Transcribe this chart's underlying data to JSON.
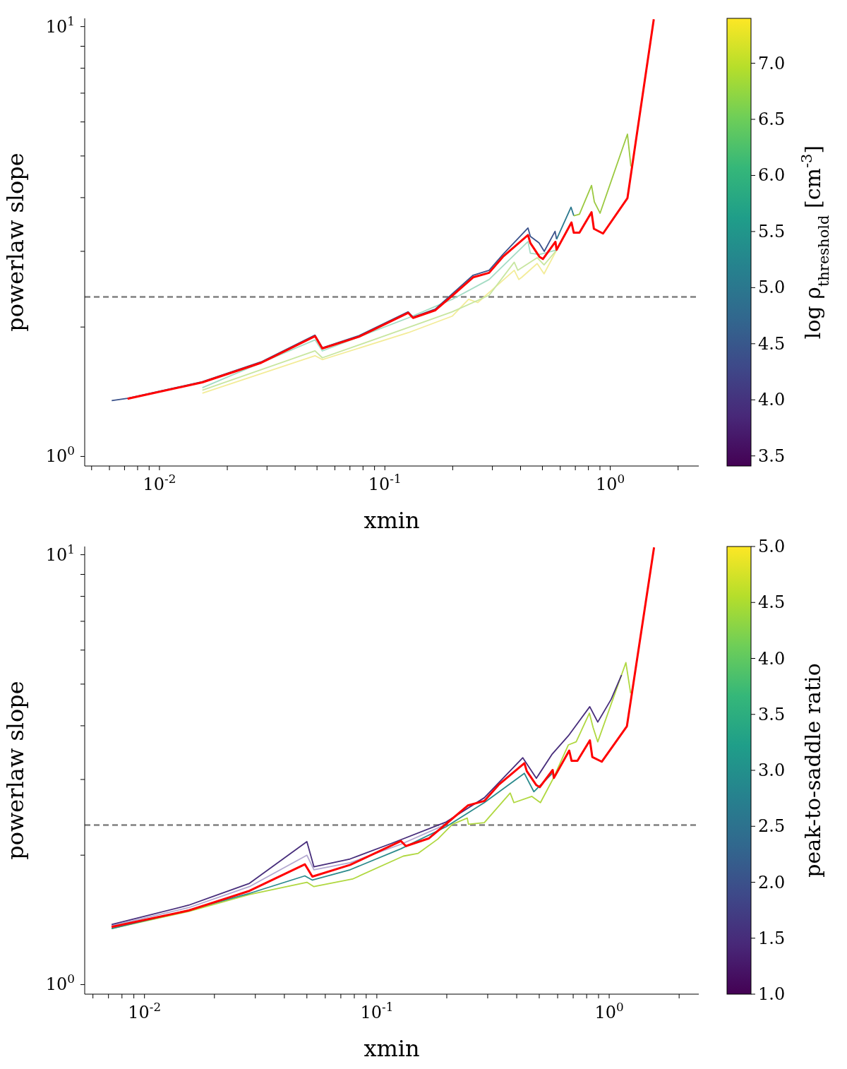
{
  "chart_data": [
    {
      "type": "line",
      "xlabel": "xmin",
      "ylabel": "powerlaw slope",
      "clabel": "log ρ$_{threshold}$ [cm$^{-3}$]",
      "log": "xy",
      "grid": false,
      "marker": "none",
      "xlim": [
        0.00466,
        2.47
      ],
      "ylim": [
        0.95,
        10.45
      ],
      "xticks": [
        {
          "value": 0.005,
          "label": null
        },
        {
          "value": 0.006,
          "label": null
        },
        {
          "value": 0.007,
          "label": null
        },
        {
          "value": 0.008,
          "label": null
        },
        {
          "value": 0.009,
          "label": null
        },
        {
          "value": 0.01,
          "label": "10$^{-2}$"
        },
        {
          "value": 0.02,
          "label": null
        },
        {
          "value": 0.03,
          "label": null
        },
        {
          "value": 0.04,
          "label": null
        },
        {
          "value": 0.05,
          "label": null
        },
        {
          "value": 0.06,
          "label": null
        },
        {
          "value": 0.07,
          "label": null
        },
        {
          "value": 0.08,
          "label": null
        },
        {
          "value": 0.09,
          "label": null
        },
        {
          "value": 0.1,
          "label": "10$^{-1}$"
        },
        {
          "value": 0.2,
          "label": null
        },
        {
          "value": 0.3,
          "label": null
        },
        {
          "value": 0.4,
          "label": null
        },
        {
          "value": 0.5,
          "label": null
        },
        {
          "value": 0.6,
          "label": null
        },
        {
          "value": 0.7,
          "label": null
        },
        {
          "value": 0.8,
          "label": null
        },
        {
          "value": 0.9,
          "label": null
        },
        {
          "value": 1,
          "label": "10$^{0}$"
        },
        {
          "value": 2,
          "label": null
        }
      ],
      "yticks": [
        {
          "value": 1,
          "label": "10$^{0}$"
        },
        {
          "value": 2,
          "label": null
        },
        {
          "value": 3,
          "label": null
        },
        {
          "value": 4,
          "label": null
        },
        {
          "value": 5,
          "label": null
        },
        {
          "value": 6,
          "label": null
        },
        {
          "value": 7,
          "label": null
        },
        {
          "value": 8,
          "label": null
        },
        {
          "value": 9,
          "label": null
        },
        {
          "value": 10,
          "label": "10$^{1}$"
        }
      ],
      "clim": [
        3.41,
        7.4
      ],
      "cticks": [
        3.5,
        {
          "value": 4,
          "label": "4.0"
        },
        4.5,
        {
          "value": 5,
          "label": "5.0"
        },
        5.5,
        {
          "value": 6,
          "label": "6.0"
        },
        6.5,
        {
          "value": 7,
          "label": "7.0"
        }
      ],
      "ref_lines": [
        {
          "axis": "y",
          "value": 2.35,
          "color": "#808080",
          "line_style": "dashed"
        }
      ],
      "series": [
        {
          "color": "#f3ec98",
          "x": [
            0.0155,
            0.049,
            0.0528,
            0.1269,
            0.199,
            0.2353,
            0.2582,
            0.375,
            0.393,
            0.405,
            0.474,
            0.5085,
            0.578
          ],
          "values": [
            1.403,
            1.715,
            1.68,
            1.94,
            2.12,
            2.32,
            2.28,
            2.71,
            2.58,
            2.61,
            2.81,
            2.66,
            3.02
          ]
        },
        {
          "color": "#c8e6a0",
          "x": [
            0.0155,
            0.049,
            0.0528,
            0.1269,
            0.199,
            0.29,
            0.375,
            0.389,
            0.474,
            0.5085,
            0.578
          ],
          "values": [
            1.426,
            1.76,
            1.696,
            1.994,
            2.17,
            2.37,
            2.83,
            2.71,
            2.9,
            2.79,
            3.02
          ]
        },
        {
          "color": "#a3dcc4",
          "x": [
            0.0155,
            0.049,
            0.0528,
            0.1269,
            0.199,
            0.29,
            0.4316,
            0.442,
            0.485,
            0.578
          ],
          "values": [
            1.445,
            1.867,
            1.76,
            2.1,
            2.32,
            2.58,
            3.16,
            2.97,
            2.95,
            3.02
          ]
        },
        {
          "color": "#3b528b",
          "x": [
            0.00614,
            0.00722,
            0.0155,
            0.0283,
            0.049,
            0.0528,
            0.0768,
            0.1269,
            0.1334,
            0.1671,
            0.199,
            0.2464,
            0.29,
            0.334,
            0.4316,
            0.442,
            0.483,
            0.5095,
            0.569,
            0.578
          ],
          "values": [
            1.349,
            1.365,
            1.492,
            1.66,
            1.915,
            1.79,
            1.91,
            2.17,
            2.11,
            2.2,
            2.39,
            2.64,
            2.71,
            2.95,
            3.4,
            3.25,
            3.14,
            3.0,
            3.34,
            3.2
          ]
        },
        {
          "color": "#2a788e",
          "x": [
            0.578,
            0.67,
            0.689
          ],
          "values": [
            3.2,
            3.8,
            3.63
          ]
        },
        {
          "color": "#9bc940",
          "x": [
            0.689,
            0.73,
            0.826,
            0.85,
            0.901,
            1.192,
            1.235
          ],
          "values": [
            3.63,
            3.66,
            4.27,
            3.91,
            3.68,
            5.62,
            4.73
          ]
        },
        {
          "color": "#ff0000",
          "x": [
            0.00722,
            0.0155,
            0.0283,
            0.049,
            0.0528,
            0.0768,
            0.1269,
            0.1334,
            0.1671,
            0.199,
            0.2464,
            0.29,
            0.334,
            0.4316,
            0.442,
            0.485,
            0.5026,
            0.5712,
            0.578,
            0.673,
            0.689,
            0.73,
            0.826,
            0.846,
            0.929,
            1.192,
            1.56
          ],
          "values": [
            1.362,
            1.487,
            1.652,
            1.905,
            1.783,
            1.899,
            2.158,
            2.1,
            2.187,
            2.366,
            2.61,
            2.674,
            2.914,
            3.274,
            3.138,
            2.914,
            2.879,
            3.157,
            3.024,
            3.503,
            3.315,
            3.315,
            3.7,
            3.385,
            3.3,
            3.99,
            10.4
          ]
        }
      ]
    },
    {
      "type": "line",
      "xlabel": "xmin",
      "ylabel": "powerlaw slope",
      "clabel": "peak-to-saddle ratio",
      "log": "xy",
      "grid": false,
      "marker": "none",
      "xlim": [
        0.00553,
        2.43
      ],
      "ylim": [
        0.95,
        10.45
      ],
      "xticks": [
        {
          "value": 0.006,
          "label": null
        },
        {
          "value": 0.007,
          "label": null
        },
        {
          "value": 0.008,
          "label": null
        },
        {
          "value": 0.009,
          "label": null
        },
        {
          "value": 0.01,
          "label": "10$^{-2}$"
        },
        {
          "value": 0.02,
          "label": null
        },
        {
          "value": 0.03,
          "label": null
        },
        {
          "value": 0.04,
          "label": null
        },
        {
          "value": 0.05,
          "label": null
        },
        {
          "value": 0.06,
          "label": null
        },
        {
          "value": 0.07,
          "label": null
        },
        {
          "value": 0.08,
          "label": null
        },
        {
          "value": 0.09,
          "label": null
        },
        {
          "value": 0.1,
          "label": "10$^{-1}$"
        },
        {
          "value": 0.2,
          "label": null
        },
        {
          "value": 0.3,
          "label": null
        },
        {
          "value": 0.4,
          "label": null
        },
        {
          "value": 0.5,
          "label": null
        },
        {
          "value": 0.6,
          "label": null
        },
        {
          "value": 0.7,
          "label": null
        },
        {
          "value": 0.8,
          "label": null
        },
        {
          "value": 0.9,
          "label": null
        },
        {
          "value": 1,
          "label": "10$^{0}$"
        },
        {
          "value": 2,
          "label": null
        }
      ],
      "yticks": [
        {
          "value": 1,
          "label": "10$^{0}$"
        },
        {
          "value": 2,
          "label": null
        },
        {
          "value": 3,
          "label": null
        },
        {
          "value": 4,
          "label": null
        },
        {
          "value": 5,
          "label": null
        },
        {
          "value": 6,
          "label": null
        },
        {
          "value": 7,
          "label": null
        },
        {
          "value": 8,
          "label": null
        },
        {
          "value": 9,
          "label": null
        },
        {
          "value": 10,
          "label": "10$^{1}$"
        }
      ],
      "clim": [
        1,
        5
      ],
      "cticks": [
        {
          "value": 1,
          "label": "1.0"
        },
        1.5,
        {
          "value": 2,
          "label": "2.0"
        },
        2.5,
        {
          "value": 3,
          "label": "3.0"
        },
        3.5,
        {
          "value": 4,
          "label": "4.0"
        },
        4.5,
        {
          "value": 5,
          "label": "5.0"
        }
      ],
      "ref_lines": [
        {
          "axis": "y",
          "value": 2.35,
          "color": "#808080",
          "line_style": "dashed"
        }
      ],
      "series": [
        {
          "color": "#b0d840",
          "x": [
            0.00722,
            0.0155,
            0.0283,
            0.05,
            0.0536,
            0.0786,
            0.13,
            0.1507,
            0.183,
            0.2115,
            0.245,
            0.248,
            0.29,
            0.375,
            0.389,
            0.465,
            0.506,
            0.575,
            0.667,
            0.721,
            0.822,
            0.853,
            0.893,
            1.18,
            1.237
          ],
          "values": [
            1.35,
            1.48,
            1.62,
            1.73,
            1.69,
            1.76,
            1.99,
            2.02,
            2.18,
            2.36,
            2.44,
            2.36,
            2.38,
            2.79,
            2.65,
            2.74,
            2.65,
            3.02,
            3.61,
            3.67,
            4.28,
            3.96,
            3.67,
            5.61,
            4.76
          ]
        },
        {
          "color": "#2a8a8c",
          "x": [
            0.00722,
            0.0155,
            0.0283,
            0.049,
            0.0528,
            0.0768,
            0.1269,
            0.199,
            0.29,
            0.4316,
            0.474,
            0.569
          ],
          "values": [
            1.35,
            1.49,
            1.63,
            1.79,
            1.75,
            1.85,
            2.07,
            2.33,
            2.65,
            3.1,
            2.81,
            3.1
          ]
        },
        {
          "color": "#b3a8d0",
          "x": [
            0.00722,
            0.0155,
            0.0283,
            0.05,
            0.0536,
            0.0767,
            0.1269,
            0.199
          ],
          "values": [
            1.37,
            1.51,
            1.69,
            2.0,
            1.85,
            1.92,
            2.12,
            2.36
          ]
        },
        {
          "color": "#472d7b",
          "x": [
            0.00722,
            0.0155,
            0.0283,
            0.05,
            0.0536,
            0.0767,
            0.1156,
            0.199,
            0.29,
            0.4248,
            0.486,
            0.569,
            0.667,
            0.825,
            0.893,
            1.02,
            1.13
          ],
          "values": [
            1.38,
            1.53,
            1.72,
            2.15,
            1.88,
            1.96,
            2.13,
            2.39,
            2.72,
            3.37,
            3.02,
            3.44,
            3.79,
            4.43,
            4.08,
            4.61,
            5.25
          ]
        },
        {
          "color": "#ff0000",
          "x": [
            0.00722,
            0.0155,
            0.0283,
            0.049,
            0.0528,
            0.0768,
            0.1269,
            0.1334,
            0.1671,
            0.199,
            0.2464,
            0.29,
            0.334,
            0.4316,
            0.442,
            0.485,
            0.5026,
            0.5712,
            0.578,
            0.673,
            0.689,
            0.73,
            0.826,
            0.846,
            0.929,
            1.192,
            1.56
          ],
          "values": [
            1.362,
            1.487,
            1.652,
            1.905,
            1.783,
            1.899,
            2.158,
            2.1,
            2.187,
            2.366,
            2.61,
            2.674,
            2.914,
            3.274,
            3.138,
            2.914,
            2.879,
            3.157,
            3.024,
            3.503,
            3.315,
            3.315,
            3.7,
            3.385,
            3.3,
            3.99,
            10.4
          ]
        }
      ]
    }
  ]
}
